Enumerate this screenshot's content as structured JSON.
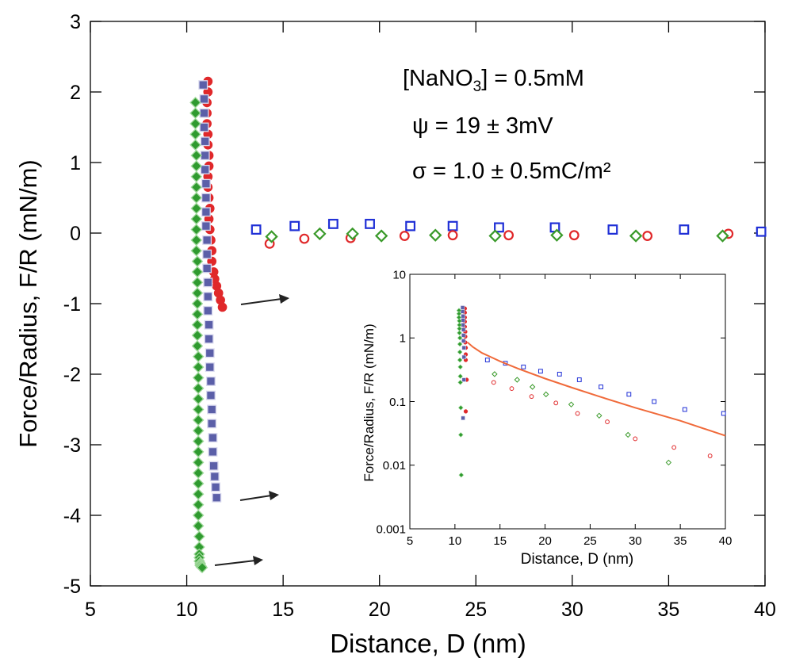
{
  "chart_data": [
    {
      "type": "scatter",
      "title": "",
      "xlabel": "Distance, D (nm)",
      "ylabel": "Force/Radius, F/R (mN/m)",
      "xlim": [
        5,
        40
      ],
      "ylim": [
        -5,
        3
      ],
      "xticks": [
        "5",
        "10",
        "15",
        "20",
        "25",
        "30",
        "35",
        "40"
      ],
      "yticks": [
        "-5",
        "-4",
        "-3",
        "-2",
        "-1",
        "0",
        "1",
        "2",
        "3"
      ],
      "grid": false,
      "annotations": {
        "salt_prefix": "[NaNO",
        "salt_sub": "3",
        "salt_suffix": "] = 0.5mM",
        "psi": "ψ = 19 ± 3mV",
        "sigma": "σ = 1.0 ± 0.5mC/m²"
      },
      "colors": {
        "blue": "#1f2fd6",
        "red": "#e0282a",
        "green": "#3a9a2a",
        "blue_fill": "#5b5fa8",
        "green_fill": "#2f9a2f",
        "fit": "#f06a3a"
      },
      "series": [
        {
          "marker": "square-open",
          "color": "blue",
          "x": [
            13.6,
            15.6,
            17.6,
            19.5,
            21.6,
            23.8,
            26.2,
            29.1,
            32.1,
            35.8,
            39.8
          ],
          "y": [
            0.05,
            0.1,
            0.13,
            0.13,
            0.1,
            0.1,
            0.08,
            0.08,
            0.05,
            0.05,
            0.02
          ]
        },
        {
          "marker": "circle-open",
          "color": "red",
          "x": [
            14.3,
            16.1,
            18.5,
            21.3,
            23.8,
            26.7,
            30.1,
            33.9,
            38.1
          ],
          "y": [
            -0.15,
            -0.08,
            -0.07,
            -0.04,
            -0.03,
            -0.03,
            -0.03,
            -0.04,
            -0.01
          ]
        },
        {
          "marker": "diamond-open",
          "color": "green",
          "x": [
            14.4,
            16.9,
            18.6,
            20.1,
            22.9,
            26.0,
            29.2,
            33.3,
            37.8
          ],
          "y": [
            -0.05,
            -0.01,
            -0.01,
            -0.04,
            -0.03,
            -0.04,
            -0.03,
            -0.04,
            -0.04
          ]
        },
        {
          "marker": "circle-filled",
          "color": "red",
          "x": [
            11.1,
            11.1,
            11.05,
            11.05,
            11.05,
            11.1,
            11.1,
            11.15,
            11.15,
            11.1,
            11.1,
            11.15,
            11.2,
            11.15,
            11.2,
            11.25,
            11.3,
            11.3,
            11.4,
            11.45,
            11.55,
            11.65,
            11.75,
            11.85
          ],
          "y": [
            2.15,
            2.0,
            1.85,
            1.7,
            1.55,
            1.4,
            1.25,
            1.1,
            0.95,
            0.8,
            0.65,
            0.5,
            0.35,
            0.2,
            0.05,
            -0.1,
            -0.25,
            -0.4,
            -0.55,
            -0.65,
            -0.75,
            -0.85,
            -0.95,
            -1.05
          ]
        },
        {
          "marker": "square-filled",
          "color": "blue_fill",
          "x": [
            10.85,
            10.9,
            10.9,
            10.9,
            10.95,
            10.95,
            10.95,
            11.0,
            11.0,
            11.0,
            11.0,
            11.05,
            11.05,
            11.05,
            11.1,
            11.1,
            11.1,
            11.15,
            11.15,
            11.2,
            11.2,
            11.25,
            11.25,
            11.3,
            11.3,
            11.35,
            11.35,
            11.4,
            11.45,
            11.5,
            11.55
          ],
          "y": [
            2.1,
            1.9,
            1.7,
            1.5,
            1.3,
            1.1,
            0.9,
            0.7,
            0.5,
            0.3,
            0.1,
            -0.1,
            -0.3,
            -0.5,
            -0.7,
            -0.9,
            -1.1,
            -1.3,
            -1.5,
            -1.7,
            -1.9,
            -2.1,
            -2.3,
            -2.5,
            -2.7,
            -2.9,
            -3.1,
            -3.3,
            -3.45,
            -3.6,
            -3.75
          ]
        },
        {
          "marker": "diamond-filled",
          "color": "green_fill",
          "x": [
            10.45,
            10.45,
            10.45,
            10.45,
            10.45,
            10.5,
            10.5,
            10.5,
            10.5,
            10.5,
            10.5,
            10.5,
            10.5,
            10.5,
            10.5,
            10.55,
            10.55,
            10.55,
            10.55,
            10.55,
            10.55,
            10.55,
            10.55,
            10.55,
            10.6,
            10.6,
            10.6,
            10.6,
            10.6,
            10.6,
            10.6,
            10.6,
            10.6,
            10.6,
            10.6,
            10.6,
            10.6,
            10.6,
            10.6,
            10.6,
            10.6,
            10.65,
            10.65,
            10.65,
            10.65,
            10.65,
            10.7,
            10.7,
            10.7,
            10.75,
            10.75,
            10.8
          ],
          "y": [
            1.85,
            1.7,
            1.55,
            1.4,
            1.25,
            1.1,
            0.95,
            0.8,
            0.65,
            0.5,
            0.35,
            0.2,
            0.05,
            -0.1,
            -0.25,
            -0.4,
            -0.55,
            -0.7,
            -0.85,
            -1.0,
            -1.15,
            -1.3,
            -1.45,
            -1.6,
            -1.75,
            -1.9,
            -2.05,
            -2.2,
            -2.35,
            -2.5,
            -2.65,
            -2.8,
            -2.95,
            -3.1,
            -3.25,
            -3.4,
            -3.55,
            -3.7,
            -3.85,
            -4.0,
            -4.15,
            -4.3,
            -4.45,
            -4.55,
            -4.6,
            -4.65,
            -4.68,
            -4.7,
            -4.71,
            -4.72,
            -4.73,
            -4.74
          ]
        }
      ]
    },
    {
      "type": "scatter",
      "title": "",
      "xlabel": "Distance, D (nm)",
      "ylabel": "Force/Radius, F/R (mN/m)",
      "xlim": [
        5,
        40
      ],
      "ylim": [
        0.001,
        10
      ],
      "yscale": "log",
      "xticks": [
        "5",
        "10",
        "15",
        "20",
        "25",
        "30",
        "35",
        "40"
      ],
      "yticks": [
        "0.001",
        "0.01",
        "0.1",
        "1",
        "10"
      ],
      "grid": false,
      "series": [
        {
          "marker": "square-open",
          "color": "blue",
          "x": [
            13.6,
            15.6,
            17.6,
            19.5,
            21.6,
            23.8,
            26.2,
            29.3,
            32.1,
            35.5,
            39.8
          ],
          "y": [
            0.45,
            0.4,
            0.35,
            0.3,
            0.27,
            0.22,
            0.17,
            0.13,
            0.1,
            0.075,
            0.065
          ]
        },
        {
          "marker": "circle-open",
          "color": "red",
          "x": [
            14.3,
            16.3,
            18.5,
            21.2,
            23.6,
            26.9,
            30.0,
            34.3,
            38.3
          ],
          "y": [
            0.2,
            0.16,
            0.12,
            0.095,
            0.065,
            0.048,
            0.026,
            0.019,
            0.014
          ]
        },
        {
          "marker": "diamond-open",
          "color": "green",
          "x": [
            14.4,
            16.9,
            18.6,
            20.1,
            22.9,
            26.0,
            29.2,
            33.7
          ],
          "y": [
            0.27,
            0.22,
            0.17,
            0.13,
            0.09,
            0.06,
            0.03,
            0.011
          ]
        },
        {
          "marker": "circle-filled",
          "color": "red",
          "x": [
            11.1,
            11.1,
            11.1,
            11.1,
            11.1,
            11.15,
            11.15,
            11.15,
            11.2,
            11.2,
            11.2,
            11.3,
            11.2
          ],
          "y": [
            2.9,
            2.5,
            2.1,
            1.8,
            1.5,
            1.25,
            1.05,
            0.85,
            0.7,
            0.55,
            0.45,
            0.22,
            0.07
          ]
        },
        {
          "marker": "square-filled",
          "color": "blue_fill",
          "x": [
            10.85,
            10.85,
            10.9,
            10.9,
            10.9,
            10.95,
            10.95,
            10.95,
            11.0,
            11.0,
            11.0,
            10.9
          ],
          "y": [
            3.0,
            2.6,
            2.2,
            1.9,
            1.6,
            1.35,
            1.1,
            0.9,
            0.7,
            0.5,
            0.22,
            0.055
          ]
        },
        {
          "marker": "diamond-filled",
          "color": "green_fill",
          "x": [
            10.45,
            10.45,
            10.45,
            10.5,
            10.5,
            10.5,
            10.5,
            10.55,
            10.55,
            10.55,
            10.55,
            10.6,
            10.6,
            10.6,
            10.65,
            10.65,
            10.7
          ],
          "y": [
            2.7,
            2.4,
            2.1,
            1.85,
            1.6,
            1.4,
            1.2,
            1.0,
            0.8,
            0.6,
            0.45,
            0.35,
            0.25,
            0.2,
            0.08,
            0.03,
            0.007
          ]
        },
        {
          "marker": "line",
          "color": "fit",
          "x": [
            11.4,
            12,
            13,
            14,
            15,
            17,
            20,
            23,
            26,
            30,
            35,
            40
          ],
          "y": [
            0.85,
            0.72,
            0.58,
            0.5,
            0.43,
            0.33,
            0.23,
            0.165,
            0.12,
            0.08,
            0.05,
            0.029
          ]
        }
      ]
    }
  ]
}
